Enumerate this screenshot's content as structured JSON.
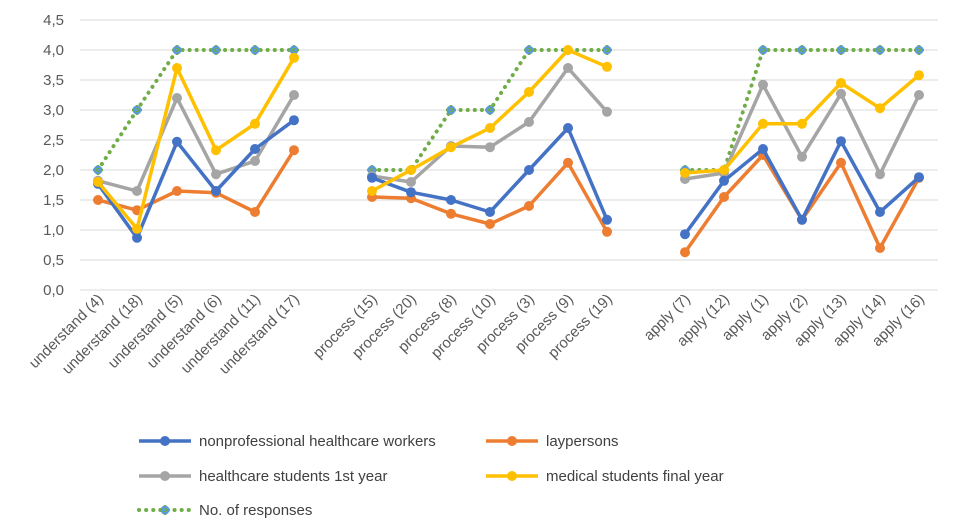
{
  "chart_data": {
    "type": "line",
    "ylim": [
      0,
      4.5
    ],
    "ytick_labels": [
      "0,0",
      "0,5",
      "1,0",
      "1,5",
      "2,0",
      "2,5",
      "3,0",
      "3,5",
      "4,0",
      "4,5"
    ],
    "ytick_values": [
      0,
      0.5,
      1,
      1.5,
      2,
      2.5,
      3,
      3.5,
      4,
      4.5
    ],
    "grid": true,
    "groups": [
      {
        "categories": [
          "understand (4)",
          "understand (18)",
          "understand (5)",
          "understand (6)",
          "understand (11)",
          "understand (17)"
        ],
        "series": [
          {
            "key": "nonprof",
            "values": [
              1.77,
              0.87,
              2.47,
              1.65,
              2.35,
              2.83
            ]
          },
          {
            "key": "lay",
            "values": [
              1.5,
              1.33,
              1.65,
              1.62,
              1.3,
              2.33
            ]
          },
          {
            "key": "hcs",
            "values": [
              1.82,
              1.65,
              3.2,
              1.93,
              2.15,
              3.25
            ]
          },
          {
            "key": "med",
            "values": [
              1.8,
              1.02,
              3.7,
              2.33,
              2.77,
              3.87
            ]
          },
          {
            "key": "resp",
            "values": [
              2,
              3,
              4,
              4,
              4,
              4
            ]
          }
        ]
      },
      {
        "categories": [
          "process (15)",
          "process (20)",
          "process (8)",
          "process (10)",
          "process (3)",
          "process (9)",
          "process (19)"
        ],
        "series": [
          {
            "key": "nonprof",
            "values": [
              1.87,
              1.63,
              1.5,
              1.3,
              2.0,
              2.7,
              1.17
            ]
          },
          {
            "key": "lay",
            "values": [
              1.55,
              1.53,
              1.27,
              1.1,
              1.4,
              2.12,
              0.97
            ]
          },
          {
            "key": "hcs",
            "values": [
              1.9,
              1.8,
              2.4,
              2.38,
              2.8,
              3.7,
              2.97
            ]
          },
          {
            "key": "med",
            "values": [
              1.65,
              2.0,
              2.38,
              2.7,
              3.3,
              4.0,
              3.72
            ]
          },
          {
            "key": "resp",
            "values": [
              2,
              2,
              3,
              3,
              4,
              4,
              4
            ]
          }
        ]
      },
      {
        "categories": [
          "apply (7)",
          "apply (12)",
          "apply (1)",
          "apply (2)",
          "apply (13)",
          "apply (14)",
          "apply (16)"
        ],
        "series": [
          {
            "key": "nonprof",
            "values": [
              0.93,
              1.82,
              2.35,
              1.17,
              2.48,
              1.3,
              1.88
            ]
          },
          {
            "key": "lay",
            "values": [
              0.63,
              1.55,
              2.25,
              1.17,
              2.12,
              0.7,
              1.87
            ]
          },
          {
            "key": "hcs",
            "values": [
              1.85,
              1.95,
              3.42,
              2.22,
              3.27,
              1.93,
              3.25
            ]
          },
          {
            "key": "med",
            "values": [
              1.95,
              2.0,
              2.77,
              2.77,
              3.45,
              3.03,
              3.58
            ]
          },
          {
            "key": "resp",
            "values": [
              2,
              2,
              4,
              4,
              4,
              4,
              4
            ]
          }
        ]
      }
    ],
    "legend": [
      {
        "key": "nonprof",
        "name": "nonprofessional healthcare workers",
        "color": "#4472C4",
        "style": "solid"
      },
      {
        "key": "lay",
        "name": "laypersons",
        "color": "#ED7D31",
        "style": "solid"
      },
      {
        "key": "hcs",
        "name": "healthcare students 1st year",
        "color": "#A5A5A5",
        "style": "solid"
      },
      {
        "key": "med",
        "name": "medical students final year",
        "color": "#FFC000",
        "style": "solid"
      },
      {
        "key": "resp",
        "name": "No. of responses",
        "color": "#70AD47",
        "style": "dotted",
        "marker_color": "#5B9BD5"
      }
    ],
    "legend_position": "bottom"
  }
}
